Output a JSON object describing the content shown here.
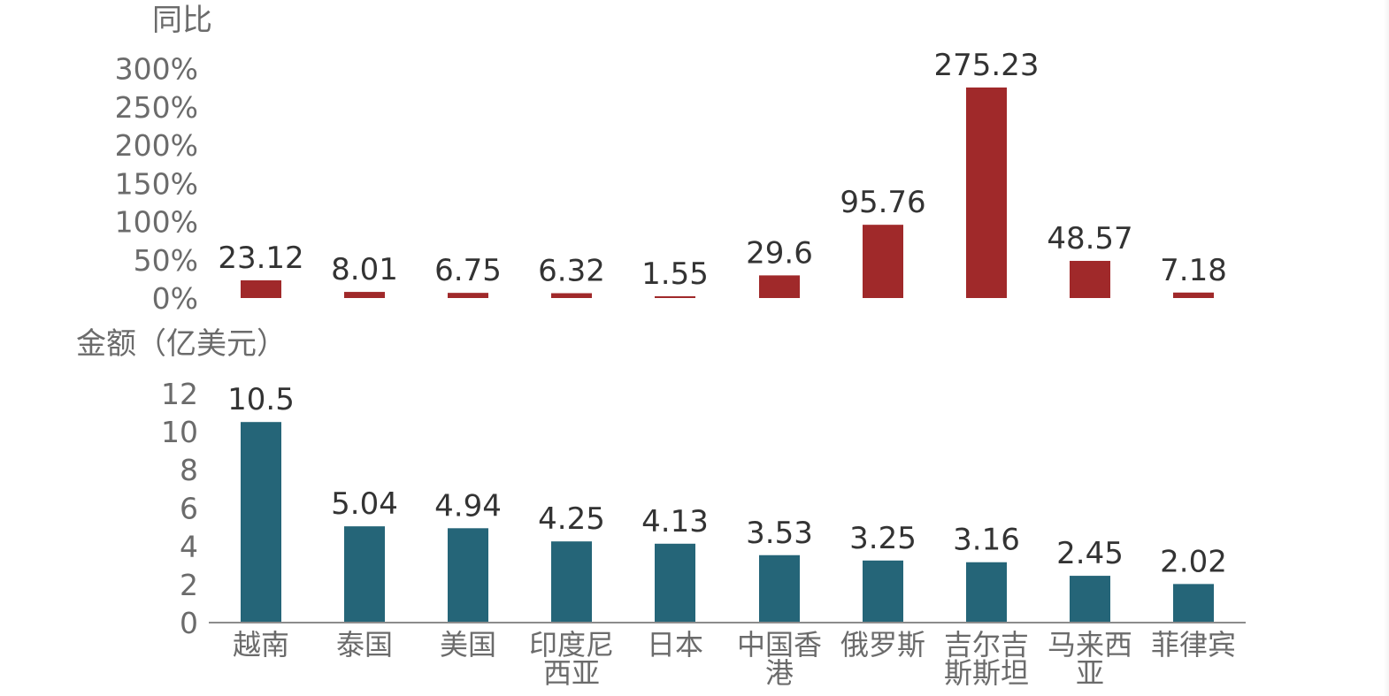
{
  "chart_data": [
    {
      "type": "bar",
      "ylabel": "同比",
      "yticks": [
        "0%",
        "50%",
        "100%",
        "150%",
        "200%",
        "250%",
        "300%"
      ],
      "ylim": [
        0,
        300
      ],
      "color": "#A0292A",
      "categories": [
        "越南",
        "泰国",
        "美国",
        "印度尼西亚",
        "日本",
        "中国香港",
        "俄罗斯",
        "吉尔吉斯斯坦",
        "马来西亚",
        "菲律宾"
      ],
      "values": [
        23.12,
        8.01,
        6.75,
        6.32,
        1.55,
        29.6,
        95.76,
        275.23,
        48.57,
        7.18
      ],
      "value_labels": [
        "23.12",
        "8.01",
        "6.75",
        "6.32",
        "1.55",
        "29.6",
        "95.76",
        "275.23",
        "48.57",
        "7.18"
      ]
    },
    {
      "type": "bar",
      "ylabel": "金额（亿美元）",
      "yticks": [
        "0",
        "2",
        "4",
        "6",
        "8",
        "10",
        "12"
      ],
      "ylim": [
        0,
        12
      ],
      "color": "#256578",
      "categories": [
        "越南",
        "泰国",
        "美国",
        "印度尼西亚",
        "日本",
        "中国香港",
        "俄罗斯",
        "吉尔吉斯斯坦",
        "马来西亚",
        "菲律宾"
      ],
      "category_lines": [
        [
          "越南"
        ],
        [
          "泰国"
        ],
        [
          "美国"
        ],
        [
          "印度尼",
          "西亚"
        ],
        [
          "日本"
        ],
        [
          "中国香",
          "港"
        ],
        [
          "俄罗斯"
        ],
        [
          "吉尔吉",
          "斯斯坦"
        ],
        [
          "马来西",
          "亚"
        ],
        [
          "菲律宾"
        ]
      ],
      "values": [
        10.5,
        5.04,
        4.94,
        4.25,
        4.13,
        3.53,
        3.25,
        3.16,
        2.45,
        2.02
      ],
      "value_labels": [
        "10.5",
        "5.04",
        "4.94",
        "4.25",
        "4.13",
        "3.53",
        "3.25",
        "3.16",
        "2.45",
        "2.02"
      ]
    }
  ]
}
